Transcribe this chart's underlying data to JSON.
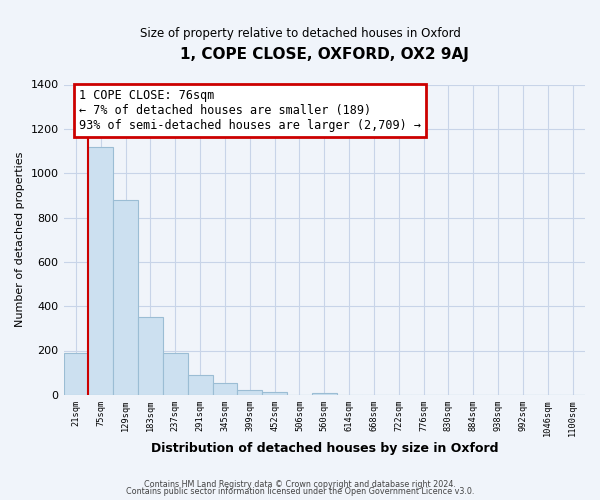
{
  "title": "1, COPE CLOSE, OXFORD, OX2 9AJ",
  "subtitle": "Size of property relative to detached houses in Oxford",
  "xlabel": "Distribution of detached houses by size in Oxford",
  "ylabel": "Number of detached properties",
  "bar_labels": [
    "21sqm",
    "75sqm",
    "129sqm",
    "183sqm",
    "237sqm",
    "291sqm",
    "345sqm",
    "399sqm",
    "452sqm",
    "506sqm",
    "560sqm",
    "614sqm",
    "668sqm",
    "722sqm",
    "776sqm",
    "830sqm",
    "884sqm",
    "938sqm",
    "992sqm",
    "1046sqm",
    "1100sqm"
  ],
  "bar_heights": [
    190,
    1120,
    880,
    350,
    190,
    90,
    55,
    20,
    15,
    0,
    10,
    0,
    0,
    0,
    0,
    0,
    0,
    0,
    0,
    0,
    0
  ],
  "bar_color": "#cce0f0",
  "bar_edge_color": "#9bbdd4",
  "marker_line_color": "#cc0000",
  "annotation_text": "1 COPE CLOSE: 76sqm\n← 7% of detached houses are smaller (189)\n93% of semi-detached houses are larger (2,709) →",
  "annotation_box_color": "#ffffff",
  "annotation_box_edge": "#cc0000",
  "ylim": [
    0,
    1400
  ],
  "yticks": [
    0,
    200,
    400,
    600,
    800,
    1000,
    1200,
    1400
  ],
  "footer_line1": "Contains HM Land Registry data © Crown copyright and database right 2024.",
  "footer_line2": "Contains public sector information licensed under the Open Government Licence v3.0.",
  "background_color": "#f0f4fa",
  "grid_color": "#c8d4e8"
}
